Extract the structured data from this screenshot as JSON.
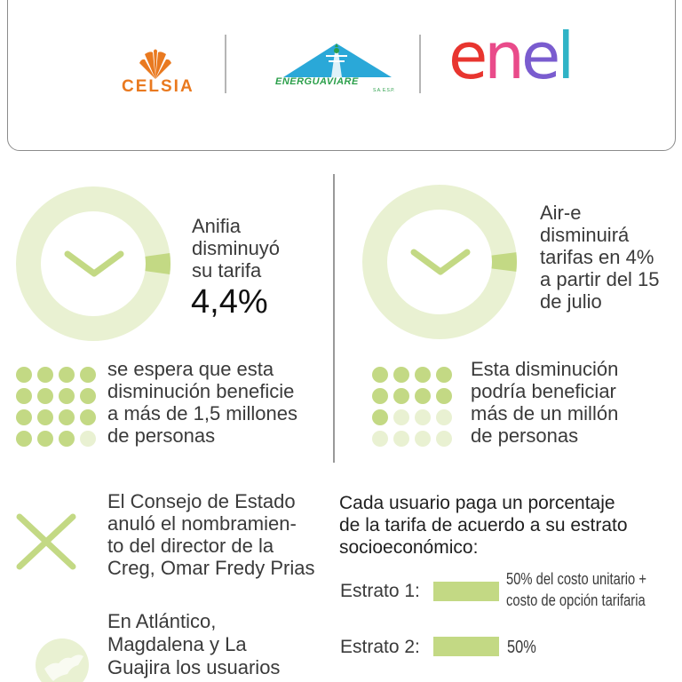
{
  "logos": {
    "celsia": "CELSIA",
    "energuaviare": "ENERGUAVIARE",
    "energuaviare_sub": "S.A. E.S.P.",
    "enel": [
      "e",
      "n",
      "e",
      "l"
    ]
  },
  "colors": {
    "accent_green": "#c3d984",
    "light_green": "#e9f1d2",
    "celsia_orange": "#e9791f",
    "energuaviare_blue": "#2aa8d8",
    "energuaviare_green": "#2b9f4a"
  },
  "left_card": {
    "line1": "Anifia",
    "line2": "disminuyó",
    "line3": "su tarifa",
    "value": "4,4%",
    "icon": "chevron-down-icon",
    "beneficiaries": [
      "se espera que esta",
      "disminución beneficie",
      "a más de 1,5 millones",
      "de personas"
    ],
    "dots_filled": 15,
    "dots_total": 16
  },
  "right_card": {
    "lines": [
      "Air-e",
      "disminuirá",
      "tarifas en 4%",
      "a partir del 15",
      "de julio"
    ],
    "icon": "chevron-down-icon",
    "beneficiaries": [
      "Esta disminución",
      "podría beneficiar",
      "más de un millón",
      "de personas"
    ],
    "dots_filled": 9,
    "dots_total": 16
  },
  "consejo": {
    "icon": "cross-icon",
    "lines": [
      "El Consejo de Estado",
      "anuló el nombramien-",
      "to del director de la",
      "Creg, Omar Fredy Prias"
    ]
  },
  "atlantico": {
    "icon": "map-icon",
    "lines": [
      "En Atlántico,",
      "Magdalena y La",
      "Guajira los usuarios"
    ]
  },
  "estratos": {
    "heading": [
      "Cada usuario paga un porcentaje",
      "de la tarifa de acuerdo a su estrato",
      "socioeconómico:"
    ],
    "items": [
      {
        "label": "Estrato 1:",
        "note": [
          "50% del costo unitario +",
          "costo de opción tarifaria"
        ]
      },
      {
        "label": "Estrato 2:",
        "note": [
          "50%"
        ]
      }
    ]
  }
}
